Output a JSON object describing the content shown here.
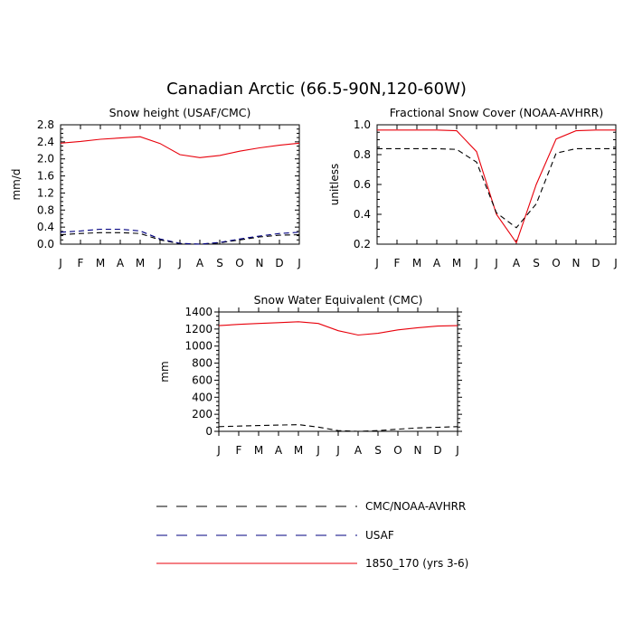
{
  "figure_title": "Canadian Arctic (66.5-90N,120-60W)",
  "legend": [
    {
      "label": "CMC/NOAA-AVHRR",
      "color": "#000000",
      "dash": "dashed"
    },
    {
      "label": "USAF",
      "color": "#000080",
      "dash": "dashed"
    },
    {
      "label": "1850_170 (yrs 3-6)",
      "color": "#e8000b",
      "dash": "solid"
    }
  ],
  "chart_data": [
    {
      "type": "line",
      "title": "Snow height (USAF/CMC)",
      "xlabel": "",
      "ylabel": "mm/d",
      "categories": [
        "J",
        "F",
        "M",
        "A",
        "M",
        "J",
        "J",
        "A",
        "S",
        "O",
        "N",
        "D",
        "J"
      ],
      "ylim": [
        0,
        2.8
      ],
      "yticks": [
        "0.0",
        "0.4",
        "0.8",
        "1.2",
        "1.6",
        "2.0",
        "2.4",
        "2.8"
      ],
      "series": [
        {
          "name": "1850_170 (yrs 3-6)",
          "color": "#e8000b",
          "dash": "solid",
          "values": [
            2.37,
            2.41,
            2.46,
            2.49,
            2.52,
            2.36,
            2.1,
            2.03,
            2.08,
            2.18,
            2.26,
            2.32,
            2.37
          ]
        },
        {
          "name": "CMC/NOAA-AVHRR",
          "color": "#000000",
          "dash": "dashed",
          "values": [
            0.22,
            0.25,
            0.27,
            0.27,
            0.25,
            0.1,
            0.01,
            0.0,
            0.03,
            0.1,
            0.17,
            0.21,
            0.22
          ]
        },
        {
          "name": "USAF",
          "color": "#000080",
          "dash": "dashed",
          "values": [
            0.28,
            0.31,
            0.35,
            0.35,
            0.31,
            0.12,
            0.02,
            0.0,
            0.04,
            0.12,
            0.19,
            0.25,
            0.28
          ]
        }
      ]
    },
    {
      "type": "line",
      "title": "Fractional Snow Cover (NOAA-AVHRR)",
      "xlabel": "",
      "ylabel": "unitless",
      "categories": [
        "J",
        "F",
        "M",
        "A",
        "M",
        "J",
        "J",
        "A",
        "S",
        "O",
        "N",
        "D",
        "J"
      ],
      "ylim": [
        0.2,
        1.0
      ],
      "yticks": [
        "0.2",
        "0.4",
        "0.6",
        "0.8",
        "1.0"
      ],
      "series": [
        {
          "name": "1850_170 (yrs 3-6)",
          "color": "#e8000b",
          "dash": "solid",
          "values": [
            0.965,
            0.965,
            0.965,
            0.965,
            0.96,
            0.82,
            0.4,
            0.21,
            0.6,
            0.905,
            0.96,
            0.965,
            0.965
          ]
        },
        {
          "name": "CMC/NOAA-AVHRR",
          "color": "#000000",
          "dash": "dashed",
          "values": [
            0.84,
            0.84,
            0.84,
            0.84,
            0.835,
            0.75,
            0.41,
            0.31,
            0.47,
            0.81,
            0.84,
            0.84,
            0.84
          ]
        }
      ]
    },
    {
      "type": "line",
      "title": "Snow Water Equivalent (CMC)",
      "xlabel": "",
      "ylabel": "mm",
      "categories": [
        "J",
        "F",
        "M",
        "A",
        "M",
        "J",
        "J",
        "A",
        "S",
        "O",
        "N",
        "D",
        "J"
      ],
      "ylim": [
        0,
        1400
      ],
      "yticks": [
        "0",
        "200",
        "400",
        "600",
        "800",
        "1000",
        "1200",
        "1400"
      ],
      "series": [
        {
          "name": "1850_170 (yrs 3-6)",
          "color": "#e8000b",
          "dash": "solid",
          "values": [
            1240,
            1255,
            1265,
            1275,
            1285,
            1265,
            1180,
            1130,
            1150,
            1190,
            1215,
            1235,
            1240
          ]
        },
        {
          "name": "CMC/NOAA-AVHRR",
          "color": "#000000",
          "dash": "dashed",
          "values": [
            55,
            62,
            68,
            73,
            78,
            50,
            8,
            0,
            8,
            25,
            40,
            48,
            55
          ]
        }
      ]
    }
  ]
}
